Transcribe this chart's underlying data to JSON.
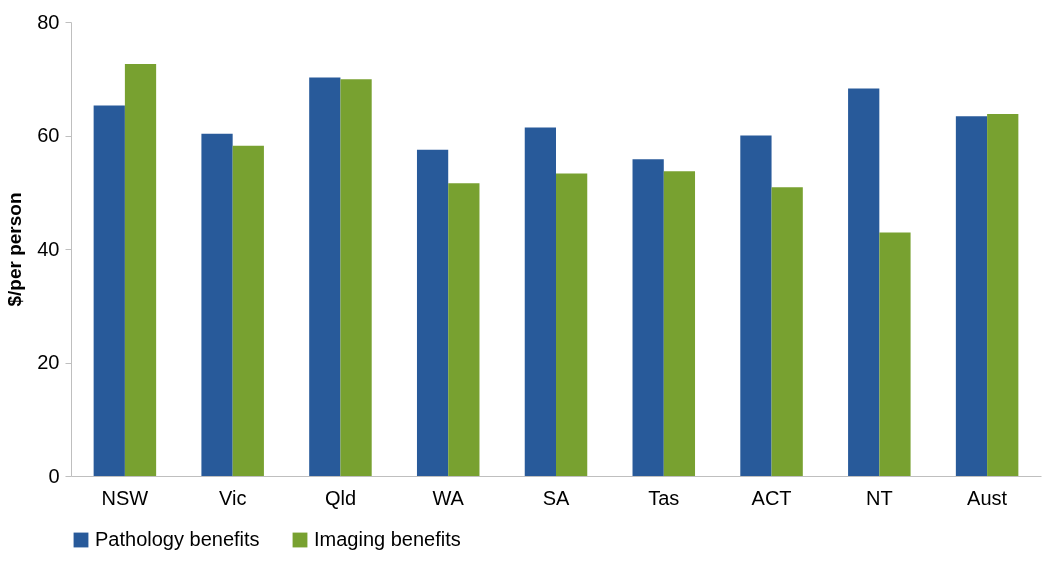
{
  "chart_data": {
    "type": "bar",
    "ylabel": "$/per person",
    "categories": [
      "NSW",
      "Vic",
      "Qld",
      "WA",
      "SA",
      "Tas",
      "ACT",
      "NT",
      "Aust"
    ],
    "series": [
      {
        "name": "Pathology benefits",
        "color": "#285a9a",
        "values": [
          65.3,
          60.3,
          70.2,
          57.5,
          61.4,
          55.8,
          60.0,
          68.3,
          63.4
        ]
      },
      {
        "name": "Imaging benefits",
        "color": "#78a130",
        "values": [
          72.6,
          58.2,
          69.9,
          51.6,
          53.3,
          53.7,
          50.9,
          42.9,
          63.8
        ]
      }
    ],
    "ylim": [
      0,
      80
    ],
    "yticks": [
      0,
      20,
      40,
      60,
      80
    ],
    "grid": false,
    "legend": "bottom"
  }
}
